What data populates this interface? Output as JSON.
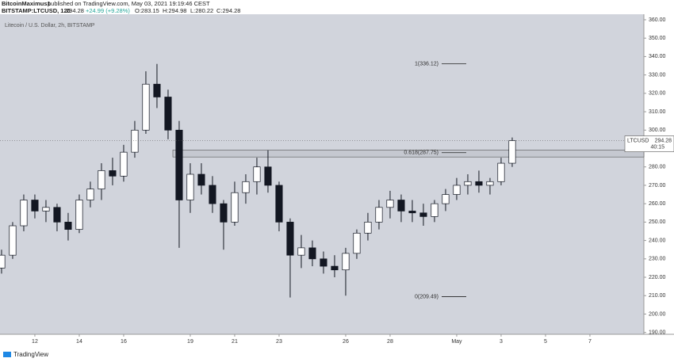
{
  "chart_data": {
    "type": "candlestick",
    "header": {
      "author": "BitcoinMaximus1",
      "published": "published on TradingView.com, May 03, 2021 19:19:46 CEST",
      "symbol": "BITSTAMP:LTCUSD, 120",
      "last": "294.28",
      "change": "+24.99 (+9.28%)",
      "open": "O:283.15",
      "high": "H:294.98",
      "low": "L:280.22",
      "close": "C:294.28"
    },
    "title": "Litecoin / U.S. Dollar, 2h, BITSTAMP",
    "footer": "TradingView",
    "xlim": [
      10.43,
      39.43
    ],
    "xticks": [
      12,
      14,
      16,
      19,
      21,
      23,
      26,
      28,
      {
        "value": 31,
        "label": "May"
      },
      {
        "value": 33,
        "label": "3"
      },
      {
        "value": 35,
        "label": "5"
      },
      {
        "value": 37,
        "label": "7"
      }
    ],
    "ylim": [
      189,
      363
    ],
    "yticks": [
      {
        "value": 190,
        "label": "190.00"
      },
      {
        "value": 200,
        "label": "200.00"
      },
      {
        "value": 210,
        "label": "210.00"
      },
      {
        "value": 220,
        "label": "220.00"
      },
      {
        "value": 230,
        "label": "230.00"
      },
      {
        "value": 240,
        "label": "240.00"
      },
      {
        "value": 250,
        "label": "250.00"
      },
      {
        "value": 260,
        "label": "260.00"
      },
      {
        "value": 270,
        "label": "270.00"
      },
      {
        "value": 280,
        "label": "280.00"
      },
      {
        "value": 290,
        "label": "290.00"
      },
      {
        "value": 300,
        "label": "300.00"
      },
      {
        "value": 310,
        "label": "310.00"
      },
      {
        "value": 320,
        "label": "320.00"
      },
      {
        "value": 330,
        "label": "330.00"
      },
      {
        "value": 340,
        "label": "340.00"
      },
      {
        "value": 350,
        "label": "350.00"
      },
      {
        "value": 360,
        "label": "360.00"
      }
    ],
    "up_color": "#ffffff",
    "down_color": "#131722",
    "background": "#d1d4dc",
    "candles": [
      {
        "x": 10.5,
        "open": 225,
        "high": 235,
        "low": 222,
        "close": 232
      },
      {
        "x": 11,
        "open": 232,
        "high": 250,
        "low": 230,
        "close": 248
      },
      {
        "x": 11.5,
        "open": 248,
        "high": 265,
        "low": 245,
        "close": 262
      },
      {
        "x": 12,
        "open": 262,
        "high": 265,
        "low": 252,
        "close": 256
      },
      {
        "x": 12.5,
        "open": 256,
        "high": 262,
        "low": 250,
        "close": 258
      },
      {
        "x": 13,
        "open": 258,
        "high": 260,
        "low": 245,
        "close": 250
      },
      {
        "x": 13.5,
        "open": 250,
        "high": 255,
        "low": 240,
        "close": 246
      },
      {
        "x": 14,
        "open": 246,
        "high": 265,
        "low": 244,
        "close": 262
      },
      {
        "x": 14.5,
        "open": 262,
        "high": 272,
        "low": 258,
        "close": 268
      },
      {
        "x": 15,
        "open": 268,
        "high": 282,
        "low": 262,
        "close": 278
      },
      {
        "x": 15.5,
        "open": 278,
        "high": 285,
        "low": 270,
        "close": 275
      },
      {
        "x": 16,
        "open": 275,
        "high": 292,
        "low": 272,
        "close": 288
      },
      {
        "x": 16.5,
        "open": 288,
        "high": 305,
        "low": 285,
        "close": 300
      },
      {
        "x": 17,
        "open": 300,
        "high": 332,
        "low": 298,
        "close": 325
      },
      {
        "x": 17.5,
        "open": 325,
        "high": 336,
        "low": 312,
        "close": 318
      },
      {
        "x": 18,
        "open": 318,
        "high": 322,
        "low": 295,
        "close": 300
      },
      {
        "x": 18.5,
        "open": 300,
        "high": 305,
        "low": 236,
        "close": 262
      },
      {
        "x": 19,
        "open": 262,
        "high": 282,
        "low": 255,
        "close": 276
      },
      {
        "x": 19.5,
        "open": 276,
        "high": 282,
        "low": 265,
        "close": 270
      },
      {
        "x": 20,
        "open": 270,
        "high": 275,
        "low": 255,
        "close": 260
      },
      {
        "x": 20.5,
        "open": 260,
        "high": 262,
        "low": 235,
        "close": 250
      },
      {
        "x": 21,
        "open": 250,
        "high": 272,
        "low": 248,
        "close": 266
      },
      {
        "x": 21.5,
        "open": 266,
        "high": 276,
        "low": 260,
        "close": 272
      },
      {
        "x": 22,
        "open": 272,
        "high": 285,
        "low": 265,
        "close": 280
      },
      {
        "x": 22.5,
        "open": 280,
        "high": 289,
        "low": 266,
        "close": 270
      },
      {
        "x": 23,
        "open": 270,
        "high": 272,
        "low": 245,
        "close": 250
      },
      {
        "x": 23.5,
        "open": 250,
        "high": 252,
        "low": 209,
        "close": 232
      },
      {
        "x": 24,
        "open": 232,
        "high": 243,
        "low": 225,
        "close": 236
      },
      {
        "x": 24.5,
        "open": 236,
        "high": 240,
        "low": 226,
        "close": 230
      },
      {
        "x": 25,
        "open": 230,
        "high": 234,
        "low": 222,
        "close": 226
      },
      {
        "x": 25.5,
        "open": 226,
        "high": 232,
        "low": 220,
        "close": 224
      },
      {
        "x": 26,
        "open": 224,
        "high": 236,
        "low": 210,
        "close": 233
      },
      {
        "x": 26.5,
        "open": 233,
        "high": 246,
        "low": 230,
        "close": 244
      },
      {
        "x": 27,
        "open": 244,
        "high": 255,
        "low": 240,
        "close": 250
      },
      {
        "x": 27.5,
        "open": 250,
        "high": 262,
        "low": 246,
        "close": 258
      },
      {
        "x": 28,
        "open": 258,
        "high": 267,
        "low": 252,
        "close": 262
      },
      {
        "x": 28.5,
        "open": 262,
        "high": 265,
        "low": 250,
        "close": 256
      },
      {
        "x": 29,
        "open": 256,
        "high": 262,
        "low": 250,
        "close": 255
      },
      {
        "x": 29.5,
        "open": 255,
        "high": 260,
        "low": 248,
        "close": 253
      },
      {
        "x": 30,
        "open": 253,
        "high": 262,
        "low": 250,
        "close": 260
      },
      {
        "x": 30.5,
        "open": 260,
        "high": 268,
        "low": 256,
        "close": 265
      },
      {
        "x": 31,
        "open": 265,
        "high": 274,
        "low": 262,
        "close": 270
      },
      {
        "x": 31.5,
        "open": 270,
        "high": 276,
        "low": 265,
        "close": 272
      },
      {
        "x": 32,
        "open": 272,
        "high": 278,
        "low": 266,
        "close": 270
      },
      {
        "x": 32.5,
        "open": 270,
        "high": 274,
        "low": 265,
        "close": 272
      },
      {
        "x": 33,
        "open": 272,
        "high": 285,
        "low": 270,
        "close": 282
      },
      {
        "x": 33.5,
        "open": 282,
        "high": 296,
        "low": 280,
        "close": 294.28
      }
    ],
    "zone": {
      "low": 285.4,
      "high": 289.2
    },
    "fib_levels": [
      {
        "label": "1(336.12)",
        "value": 336.12
      },
      {
        "label": "0.618(287.75)",
        "value": 287.75
      },
      {
        "label": "0(209.49)",
        "value": 209.49
      }
    ],
    "price_tag": {
      "symbol": "LTCUSD",
      "value": 294.28,
      "label": "294.28",
      "countdown": "40:15"
    }
  }
}
